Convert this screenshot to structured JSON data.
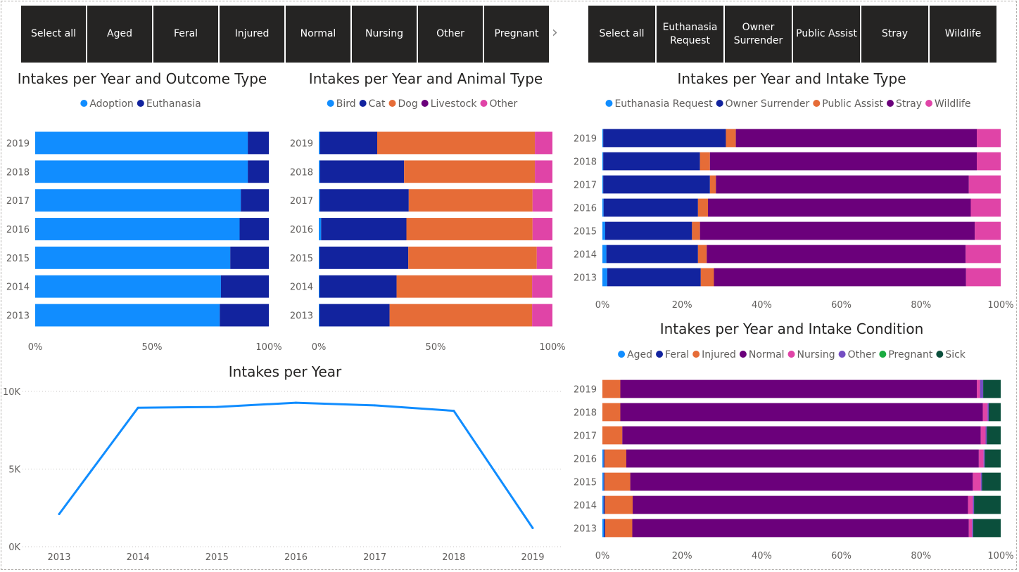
{
  "slicers": {
    "condition": [
      "Select all",
      "Aged",
      "Feral",
      "Injured",
      "Normal",
      "Nursing",
      "Other",
      "Pregnant"
    ],
    "intake_type": [
      "Select all",
      "Euthanasia Request",
      "Owner Surrender",
      "Public Assist",
      "Stray",
      "Wildlife"
    ]
  },
  "chart_data": [
    {
      "type": "bar",
      "stacked_percent": true,
      "orientation": "horizontal",
      "title": "Intakes per Year and Outcome Type",
      "legend_position": "top-center",
      "categories": [
        "2019",
        "2018",
        "2017",
        "2016",
        "2015",
        "2014",
        "2013"
      ],
      "series": [
        {
          "name": "Adoption",
          "color": "#118DFF",
          "values": [
            91,
            91,
            88,
            87.5,
            83.5,
            79.5,
            79
          ]
        },
        {
          "name": "Euthanasia",
          "color": "#12239E",
          "values": [
            9,
            9,
            12,
            12.5,
            16.5,
            20.5,
            21
          ]
        }
      ],
      "xticks": [
        "0%",
        "50%",
        "100%"
      ],
      "xlim": [
        0,
        100
      ]
    },
    {
      "type": "bar",
      "stacked_percent": true,
      "orientation": "horizontal",
      "title": "Intakes per Year and Animal Type",
      "legend_position": "top-center",
      "categories": [
        "2019",
        "2018",
        "2017",
        "2016",
        "2015",
        "2014",
        "2013"
      ],
      "series": [
        {
          "name": "Bird",
          "color": "#118DFF",
          "values": [
            0.5,
            0.5,
            0.5,
            1,
            0.3,
            0.3,
            0.3
          ]
        },
        {
          "name": "Cat",
          "color": "#12239E",
          "values": [
            24.5,
            36,
            38,
            36.5,
            38,
            33,
            30
          ]
        },
        {
          "name": "Dog",
          "color": "#E66C37",
          "values": [
            67.5,
            56,
            53,
            54,
            55,
            58,
            61
          ]
        },
        {
          "name": "Livestock",
          "color": "#6B007B",
          "values": [
            0,
            0,
            0,
            0,
            0,
            0,
            0
          ]
        },
        {
          "name": "Other",
          "color": "#E044A7",
          "values": [
            7.5,
            7.5,
            8.5,
            8.5,
            6.7,
            8.7,
            8.7
          ]
        }
      ],
      "xticks": [
        "0%",
        "50%",
        "100%"
      ],
      "xlim": [
        0,
        100
      ]
    },
    {
      "type": "bar",
      "stacked_percent": true,
      "orientation": "horizontal",
      "title": "Intakes per Year and Intake Type",
      "legend_position": "top-center",
      "categories": [
        "2019",
        "2018",
        "2017",
        "2016",
        "2015",
        "2014",
        "2013"
      ],
      "series": [
        {
          "name": "Euthanasia Request",
          "color": "#118DFF",
          "values": [
            0.2,
            0.2,
            0.2,
            0.3,
            0.7,
            1,
            1.2
          ]
        },
        {
          "name": "Owner Surrender",
          "color": "#12239E",
          "values": [
            30.8,
            24.3,
            26.8,
            23.7,
            21.8,
            23,
            23.5
          ]
        },
        {
          "name": "Public Assist",
          "color": "#E66C37",
          "values": [
            2.5,
            2.5,
            1.5,
            2.5,
            2,
            2.2,
            3.3
          ]
        },
        {
          "name": "Stray",
          "color": "#6B007B",
          "values": [
            60.5,
            67,
            63.5,
            66,
            69,
            65,
            63.3
          ]
        },
        {
          "name": "Wildlife",
          "color": "#E044A7",
          "values": [
            6,
            6,
            8,
            7.5,
            6.5,
            8.8,
            8.7
          ]
        }
      ],
      "xticks": [
        "0%",
        "20%",
        "40%",
        "60%",
        "80%",
        "100%"
      ],
      "xlim": [
        0,
        100
      ]
    },
    {
      "type": "bar",
      "stacked_percent": true,
      "orientation": "horizontal",
      "title": "Intakes per Year and Intake Condition",
      "legend_position": "top-center",
      "categories": [
        "2019",
        "2018",
        "2017",
        "2016",
        "2015",
        "2014",
        "2013"
      ],
      "series": [
        {
          "name": "Aged",
          "color": "#118DFF",
          "values": [
            0,
            0,
            0,
            0.3,
            0.3,
            0.3,
            0.4
          ]
        },
        {
          "name": "Feral",
          "color": "#12239E",
          "values": [
            0,
            0,
            0,
            0.2,
            0.2,
            0.3,
            0.3
          ]
        },
        {
          "name": "Injured",
          "color": "#E66C37",
          "values": [
            4.5,
            4.5,
            5,
            5.5,
            6.5,
            7,
            6.8
          ]
        },
        {
          "name": "Normal",
          "color": "#6B007B",
          "values": [
            89.5,
            91,
            90,
            88.5,
            86,
            84.2,
            84.5
          ]
        },
        {
          "name": "Nursing",
          "color": "#E044A7",
          "values": [
            0.8,
            1.2,
            1.2,
            1.2,
            2,
            1.2,
            0.8
          ]
        },
        {
          "name": "Other",
          "color": "#744EC2",
          "values": [
            0.8,
            0.3,
            0.3,
            0.3,
            0.3,
            0.3,
            0.3
          ]
        },
        {
          "name": "Pregnant",
          "color": "#1AAB40",
          "values": [
            0,
            0,
            0,
            0,
            0,
            0,
            0
          ]
        },
        {
          "name": "Sick",
          "color": "#0B4F3C",
          "values": [
            4.4,
            3,
            3.5,
            4,
            4.7,
            6.7,
            6.9
          ]
        }
      ],
      "xticks": [
        "0%",
        "20%",
        "40%",
        "60%",
        "80%",
        "100%"
      ],
      "xlim": [
        0,
        100
      ]
    },
    {
      "type": "line",
      "title": "Intakes per Year",
      "x": [
        "2013",
        "2014",
        "2015",
        "2016",
        "2017",
        "2018",
        "2019"
      ],
      "series": [
        {
          "color": "#118DFF",
          "values": [
            2100,
            8950,
            9000,
            9270,
            9100,
            8750,
            1200
          ]
        }
      ],
      "ylim": [
        0,
        10000
      ],
      "yticks": [
        {
          "value": 0,
          "label": "0K"
        },
        {
          "value": 5000,
          "label": "5K"
        },
        {
          "value": 10000,
          "label": "10K"
        }
      ],
      "grid": "horizontal-dotted"
    }
  ]
}
